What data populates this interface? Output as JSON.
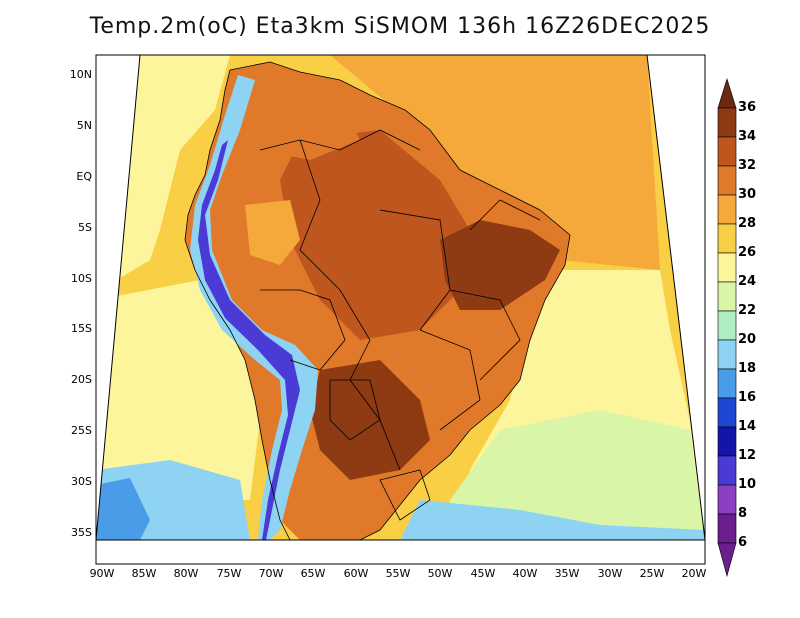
{
  "title": "Temp.2m(oC) Eta3km SiSMOM 136h 16Z26DEC2025",
  "latitude_labels": [
    "10N",
    "5N",
    "EQ",
    "5S",
    "10S",
    "15S",
    "20S",
    "25S",
    "30S",
    "35S"
  ],
  "longitude_labels": [
    "90W",
    "85W",
    "80W",
    "75W",
    "70W",
    "65W",
    "60W",
    "55W",
    "50W",
    "45W",
    "40W",
    "35W",
    "30W",
    "25W",
    "20W"
  ],
  "colorbar": {
    "labels": [
      "36",
      "34",
      "32",
      "30",
      "28",
      "26",
      "24",
      "22",
      "20",
      "18",
      "16",
      "14",
      "12",
      "10",
      "8",
      "6"
    ],
    "colors": {
      "c36": "#6b2a10",
      "c34": "#8e3b14",
      "c32": "#bf561d",
      "c30": "#e07a2a",
      "c28": "#f4a93a",
      "c26": "#f9cf45",
      "c24": "#fdf59c",
      "c22": "#d9f5a8",
      "c20": "#b0ecc4",
      "c18": "#8fd3f2",
      "c16": "#4a9be8",
      "c14": "#1f47d4",
      "c12": "#1414a8",
      "c10": "#4a3bd6",
      "c8": "#8c3ec4",
      "c6": "#6b1e8e"
    }
  },
  "map_colors": {
    "ocean_warm": "#f9cf45",
    "ocean_mid": "#fdf59c",
    "ocean_cool": "#d9f5a8",
    "ocean_cold": "#8fd3f2",
    "ocean_colder": "#4a9be8",
    "land_hot": "#bf561d",
    "land_hotter": "#8e3b14",
    "land_warm": "#e07a2a",
    "andes_cold": "#4a3bd6",
    "andes_mid": "#8fd3f2",
    "border": "#000000"
  }
}
